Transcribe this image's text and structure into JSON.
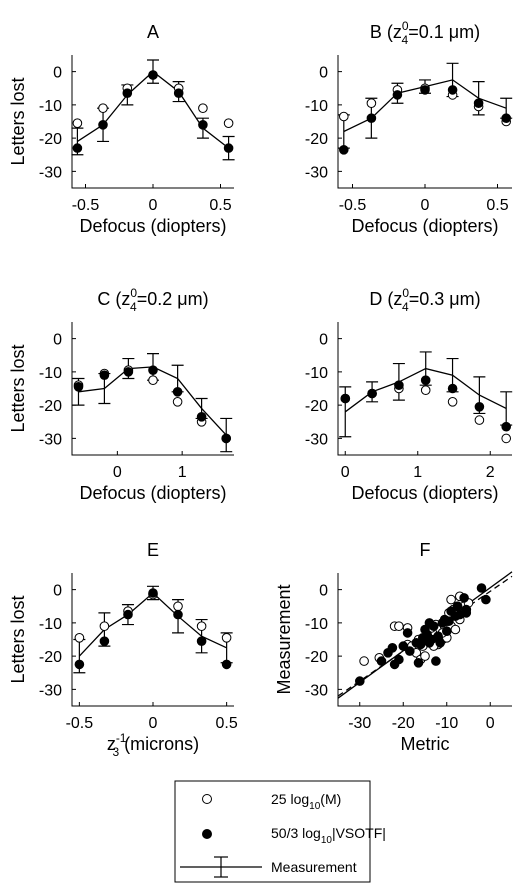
{
  "legend": {
    "entries": [
      {
        "kind": "open",
        "label_main": "25 log",
        "label_sub": "10",
        "label_tail": "(M)"
      },
      {
        "kind": "filled",
        "label_main": "50/3 log",
        "label_sub": "10",
        "label_tail": "|VSOTF|"
      },
      {
        "kind": "measurement",
        "label_main": "Measurement",
        "label_sub": "",
        "label_tail": ""
      }
    ]
  },
  "chart_data": [
    {
      "id": "A",
      "type": "line",
      "title": "A",
      "title_sup": "",
      "title_tail": "",
      "xlabel": "Defocus (diopters)",
      "ylabel": "Letters lost",
      "xlim": [
        -0.6,
        0.6
      ],
      "ylim": [
        -35,
        5
      ],
      "xticks": [
        -0.5,
        0,
        0.5
      ],
      "xticklabels": [
        "-0.5",
        "0",
        "0.5"
      ],
      "yticks": [
        0,
        -10,
        -20,
        -30
      ],
      "yticklabels": [
        "0",
        "-10",
        "-20",
        "-30"
      ],
      "measurement": {
        "x": [
          -0.56,
          -0.37,
          -0.19,
          0,
          0.19,
          0.37,
          0.56
        ],
        "y": [
          -21,
          -16,
          -7,
          0,
          -6,
          -17,
          -23
        ],
        "err": [
          4,
          5,
          3,
          3.5,
          3,
          3,
          3.5
        ]
      },
      "open": {
        "x": [
          -0.56,
          -0.37,
          -0.19,
          0,
          0.19,
          0.37,
          0.56
        ],
        "y": [
          -15.5,
          -11,
          -5,
          -1,
          -5,
          -11,
          -15.5
        ]
      },
      "filled": {
        "x": [
          -0.56,
          -0.37,
          -0.19,
          0,
          0.19,
          0.37,
          0.56
        ],
        "y": [
          -23,
          -16,
          -6.5,
          -1,
          -6.5,
          -16,
          -23
        ]
      }
    },
    {
      "id": "B",
      "type": "line",
      "title": "B (z",
      "title_sup": "0",
      "title_sub": "4",
      "title_tail": "=0.1 μm)",
      "xlabel": "Defocus (diopters)",
      "ylabel": "",
      "xlim": [
        -0.6,
        0.6
      ],
      "ylim": [
        -35,
        5
      ],
      "xticks": [
        -0.5,
        0,
        0.5
      ],
      "xticklabels": [
        "-0.5",
        "0",
        "0.5"
      ],
      "yticks": [
        0,
        -10,
        -20,
        -30
      ],
      "yticklabels": [
        "0",
        "-10",
        "-20",
        "-30"
      ],
      "measurement": {
        "x": [
          -0.56,
          -0.37,
          -0.19,
          0,
          0.19,
          0.37,
          0.56
        ],
        "y": [
          -18,
          -14,
          -6.5,
          -4.5,
          -2.5,
          -8,
          -11
        ],
        "err": [
          5,
          6,
          3,
          2,
          5,
          5,
          3
        ]
      },
      "open": {
        "x": [
          -0.56,
          -0.37,
          -0.19,
          0,
          0.19,
          0.37,
          0.56
        ],
        "y": [
          -13.5,
          -9.5,
          -5.5,
          -5,
          -7,
          -10.5,
          -15
        ]
      },
      "filled": {
        "x": [
          -0.56,
          -0.37,
          -0.19,
          0,
          0.19,
          0.37,
          0.56
        ],
        "y": [
          -23.5,
          -14,
          -7,
          -5.5,
          -5.5,
          -9.5,
          -14
        ]
      }
    },
    {
      "id": "C",
      "type": "line",
      "title": "C (z",
      "title_sup": "0",
      "title_sub": "4",
      "title_tail": "=0.2 μm)",
      "xlabel": "Defocus (diopters)",
      "ylabel": "Letters lost",
      "xlim": [
        -0.7,
        1.8
      ],
      "ylim": [
        -35,
        5
      ],
      "xticks": [
        0,
        1
      ],
      "xticklabels": [
        "0",
        "1"
      ],
      "yticks": [
        0,
        -10,
        -20,
        -30
      ],
      "yticklabels": [
        "0",
        "-10",
        "-20",
        "-30"
      ],
      "measurement": {
        "x": [
          -0.6,
          -0.2,
          0.17,
          0.55,
          0.93,
          1.3,
          1.68
        ],
        "y": [
          -16,
          -15,
          -9,
          -8.5,
          -12,
          -21,
          -29
        ],
        "err": [
          4,
          4.5,
          3,
          4,
          4,
          3,
          5
        ]
      },
      "open": {
        "x": [
          -0.6,
          -0.2,
          0.17,
          0.55,
          0.93,
          1.3,
          1.68
        ],
        "y": [
          -14,
          -10.5,
          -9.5,
          -12.5,
          -19,
          -25,
          -30
        ]
      },
      "filled": {
        "x": [
          -0.6,
          -0.2,
          0.17,
          0.55,
          0.93,
          1.3,
          1.68
        ],
        "y": [
          -14.5,
          -11,
          -10,
          -9.5,
          -16,
          -23.5,
          -30
        ]
      }
    },
    {
      "id": "D",
      "type": "line",
      "title": "D (z",
      "title_sup": "0",
      "title_sub": "4",
      "title_tail": "=0.3 μm)",
      "xlabel": "Defocus (diopters)",
      "ylabel": "",
      "xlim": [
        -0.1,
        2.3
      ],
      "ylim": [
        -35,
        5
      ],
      "xticks": [
        0,
        1,
        2
      ],
      "xticklabels": [
        "0",
        "1",
        "2"
      ],
      "yticks": [
        0,
        -10,
        -20,
        -30
      ],
      "yticklabels": [
        "0",
        "-10",
        "-20",
        "-30"
      ],
      "measurement": {
        "x": [
          0,
          0.37,
          0.74,
          1.11,
          1.48,
          1.85,
          2.22
        ],
        "y": [
          -22,
          -16,
          -13,
          -9,
          -11,
          -17,
          -21
        ],
        "err": [
          7.5,
          3,
          5.5,
          5,
          5,
          5.5,
          5
        ]
      },
      "open": {
        "x": [
          0,
          0.37,
          0.74,
          1.11,
          1.48,
          1.85,
          2.22
        ],
        "y": [
          -18,
          -16.5,
          -15,
          -15.5,
          -19,
          -24.5,
          -30
        ]
      },
      "filled": {
        "x": [
          0,
          0.37,
          0.74,
          1.11,
          1.48,
          1.85,
          2.22
        ],
        "y": [
          -18,
          -16.5,
          -14,
          -12.5,
          -15,
          -20.5,
          -26.5
        ]
      }
    },
    {
      "id": "E",
      "type": "line",
      "title": "E",
      "title_sup": "",
      "title_tail": "",
      "xlabel": "z",
      "xlabel_sub": "3",
      "xlabel_sup": "-1",
      "xlabel_tail": " (microns)",
      "ylabel": "Letters lost",
      "xlim": [
        -0.55,
        0.55
      ],
      "ylim": [
        -35,
        5
      ],
      "xticks": [
        -0.5,
        0,
        0.5
      ],
      "xticklabels": [
        "-0.5",
        "0",
        "0.5"
      ],
      "yticks": [
        0,
        -10,
        -20,
        -30
      ],
      "yticklabels": [
        "0",
        "-10",
        "-20",
        "-30"
      ],
      "measurement": {
        "x": [
          -0.5,
          -0.33,
          -0.17,
          0,
          0.17,
          0.33,
          0.5
        ],
        "y": [
          -20,
          -12,
          -7.5,
          -1,
          -8,
          -14,
          -17.5
        ],
        "err": [
          5,
          5,
          3,
          2,
          5,
          5,
          4.5
        ]
      },
      "open": {
        "x": [
          -0.5,
          -0.33,
          -0.17,
          0,
          0.17,
          0.33,
          0.5
        ],
        "y": [
          -14.5,
          -11,
          -6.5,
          -1.5,
          -5,
          -11,
          -14.5
        ]
      },
      "filled": {
        "x": [
          -0.5,
          -0.33,
          -0.17,
          0,
          0.17,
          0.33,
          0.5
        ],
        "y": [
          -22.5,
          -15.5,
          -7.5,
          -1,
          -7.5,
          -15.5,
          -22.5
        ]
      }
    },
    {
      "id": "F",
      "type": "scatter",
      "title": "F",
      "title_sup": "",
      "title_tail": "",
      "xlabel": "Metric",
      "ylabel": "Measurement",
      "xlim": [
        -35,
        5
      ],
      "ylim": [
        -35,
        5
      ],
      "xticks": [
        -30,
        -20,
        -10,
        0
      ],
      "xticklabels": [
        "-30",
        "-20",
        "-10",
        "0"
      ],
      "yticks": [
        0,
        -10,
        -20,
        -30
      ],
      "yticklabels": [
        "0",
        "-10",
        "-20",
        "-30"
      ],
      "fit_lines": [
        {
          "style": "solid",
          "slope": 0.95,
          "intercept": 0.6
        },
        {
          "style": "dashed",
          "slope": 0.9,
          "intercept": -0.5
        }
      ],
      "open": {
        "x": [
          -29,
          -25.5,
          -22,
          -21,
          -19,
          -18,
          -17,
          -16,
          -15.5,
          -15,
          -14.5,
          -14,
          -13.5,
          -13,
          -12.5,
          -12,
          -11.5,
          -11,
          -10.5,
          -10,
          -9.5,
          -9,
          -8.5,
          -8,
          -7.5,
          -7,
          -6.5,
          -6,
          -5.5,
          -5,
          -19,
          -16.5,
          -13,
          -11,
          -9,
          -7
        ],
        "y": [
          -21.5,
          -20.5,
          -11,
          -11,
          -16.5,
          -17,
          -19,
          -21,
          -17,
          -20,
          -14.5,
          -15.5,
          -11.5,
          -15,
          -10.5,
          -16.5,
          -12,
          -15,
          -11,
          -14.5,
          -7,
          -11,
          -6,
          -12,
          -5,
          -9,
          -6.5,
          -5,
          -6,
          -4,
          -11.5,
          -15,
          -17,
          -13,
          -3,
          -2
        ]
      },
      "filled": {
        "x": [
          -30,
          -25,
          -23.5,
          -22.5,
          -21,
          -20,
          -18.5,
          -17,
          -16.5,
          -16,
          -15.5,
          -15,
          -14.5,
          -14,
          -13.5,
          -13,
          -12.5,
          -12,
          -11.5,
          -11,
          -10.5,
          -10,
          -9.5,
          -9,
          -8,
          -7.5,
          -7,
          -6,
          -5.5,
          -2,
          -1,
          -22,
          -19,
          -14,
          -10,
          -5.5
        ],
        "y": [
          -27.5,
          -21.5,
          -19,
          -17.5,
          -21,
          -17,
          -18.5,
          -16,
          -22,
          -16.5,
          -14.5,
          -12,
          -13.5,
          -10,
          -15,
          -11,
          -21.5,
          -14,
          -16,
          -10,
          -9,
          -12.5,
          -9.5,
          -6.5,
          -8,
          -5,
          -7.5,
          -2.5,
          -6,
          0.5,
          -3,
          -22.5,
          -13,
          -16,
          -9.5,
          -7
        ]
      }
    }
  ]
}
